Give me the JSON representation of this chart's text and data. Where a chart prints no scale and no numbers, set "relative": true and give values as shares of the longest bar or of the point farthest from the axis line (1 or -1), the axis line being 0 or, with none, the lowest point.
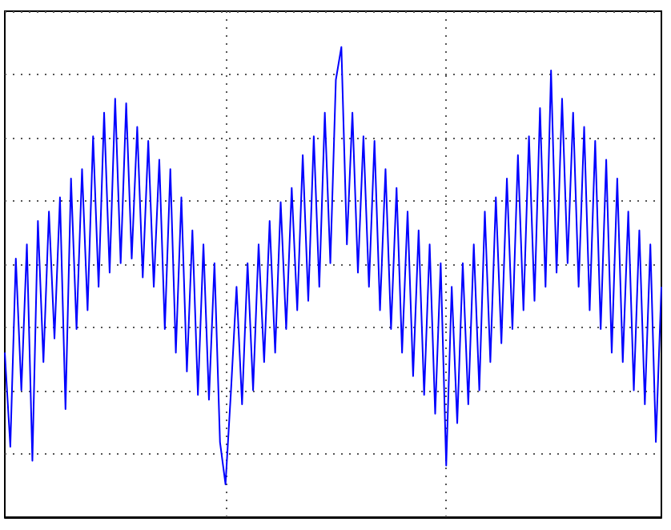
{
  "chart_data": {
    "type": "line",
    "relative": true,
    "grid": true,
    "categories": [
      null,
      null,
      null,
      null,
      null,
      null,
      null,
      null,
      null,
      null,
      null,
      null,
      null,
      null,
      null,
      null,
      null,
      null,
      null,
      null,
      null,
      null,
      null,
      null,
      null,
      null,
      null,
      null,
      null,
      null,
      null,
      null,
      null,
      null,
      null,
      null,
      null,
      null,
      null,
      null,
      null,
      null,
      null,
      null,
      null,
      null,
      null,
      null,
      null,
      null,
      null,
      null,
      null,
      null,
      null,
      null,
      null,
      null,
      null,
      null,
      null,
      null,
      null,
      null,
      null,
      null,
      null,
      null,
      null,
      null,
      null,
      null,
      null,
      null,
      null,
      null,
      null,
      null,
      null,
      null,
      null,
      null,
      null,
      null,
      null,
      null,
      null,
      null,
      null,
      null,
      null,
      null,
      null,
      null,
      null,
      null,
      null,
      null,
      null,
      null,
      null,
      null,
      null,
      null,
      null,
      null,
      null,
      null,
      null,
      null,
      null,
      null,
      null,
      null,
      null,
      null,
      null,
      null,
      null,
      null
    ],
    "series": [
      {
        "color": "#0000ff",
        "values": [
          0.35,
          0.15,
          0.55,
          0.27,
          0.58,
          0.12,
          0.63,
          0.33,
          0.65,
          0.38,
          0.68,
          0.23,
          0.72,
          0.4,
          0.74,
          0.44,
          0.81,
          0.49,
          0.86,
          0.52,
          0.89,
          0.54,
          0.88,
          0.55,
          0.83,
          0.51,
          0.8,
          0.49,
          0.76,
          0.4,
          0.74,
          0.35,
          0.68,
          0.31,
          0.61,
          0.26,
          0.58,
          0.25,
          0.54,
          0.16,
          0.07,
          0.27,
          0.49,
          0.24,
          0.54,
          0.27,
          0.58,
          0.33,
          0.63,
          0.35,
          0.67,
          0.4,
          0.7,
          0.44,
          0.77,
          0.46,
          0.81,
          0.49,
          0.86,
          0.54,
          0.93,
          1.0,
          0.58,
          0.86,
          0.52,
          0.81,
          0.49,
          0.8,
          0.44,
          0.74,
          0.4,
          0.7,
          0.35,
          0.65,
          0.3,
          0.61,
          0.26,
          0.58,
          0.22,
          0.54,
          0.11,
          0.49,
          0.2,
          0.54,
          0.24,
          0.58,
          0.27,
          0.65,
          0.33,
          0.68,
          0.37,
          0.72,
          0.4,
          0.77,
          0.44,
          0.81,
          0.46,
          0.87,
          0.49,
          0.95,
          0.52,
          0.89,
          0.54,
          0.86,
          0.49,
          0.83,
          0.44,
          0.8,
          0.4,
          0.76,
          0.35,
          0.72,
          0.33,
          0.65,
          0.27,
          0.61,
          0.24,
          0.58,
          0.16,
          0.49
        ]
      }
    ]
  }
}
